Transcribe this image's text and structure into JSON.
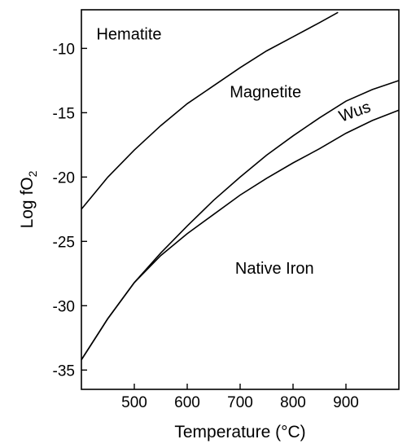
{
  "chart_data": {
    "type": "line",
    "xlabel": "Temperature (°C)",
    "ylabel_main": "Log fO",
    "ylabel_sub": "2",
    "xlim": [
      400,
      1000
    ],
    "ylim": [
      -36.5,
      -7
    ],
    "x_ticks": [
      500,
      600,
      700,
      800,
      900
    ],
    "y_ticks": [
      -10,
      -15,
      -20,
      -25,
      -30,
      -35
    ],
    "series": [
      {
        "x": [
          400,
          450,
          500,
          550,
          600,
          650,
          700,
          750,
          800,
          850,
          885
        ],
        "y": [
          -22.5,
          -20.0,
          -17.9,
          -16.0,
          -14.3,
          -12.9,
          -11.5,
          -10.2,
          -9.1,
          -8.0,
          -7.2
        ]
      },
      {
        "x": [
          400,
          450,
          500,
          550,
          600,
          650,
          700,
          750,
          800,
          850,
          900,
          950,
          1000
        ],
        "y": [
          -34.2,
          -31.0,
          -28.2,
          -25.9,
          -23.8,
          -21.8,
          -20.0,
          -18.3,
          -16.8,
          -15.4,
          -14.1,
          -13.2,
          -12.5
        ]
      },
      {
        "x": [
          400,
          450,
          500,
          550,
          600,
          650,
          700,
          750,
          800,
          850,
          900,
          950,
          1000
        ],
        "y": [
          -34.2,
          -31.0,
          -28.2,
          -26.1,
          -24.4,
          -22.9,
          -21.4,
          -20.1,
          -18.9,
          -17.8,
          -16.6,
          -15.6,
          -14.8
        ]
      }
    ],
    "annotations": [
      {
        "text": "Hematite",
        "x": 490,
        "y": -9.3
      },
      {
        "text": "Magnetite",
        "x": 748,
        "y": -13.8
      },
      {
        "text": "Wus",
        "x": 920,
        "y": -15.3,
        "rotate": -20
      },
      {
        "text": "Native Iron",
        "x": 765,
        "y": -27.5
      }
    ]
  }
}
